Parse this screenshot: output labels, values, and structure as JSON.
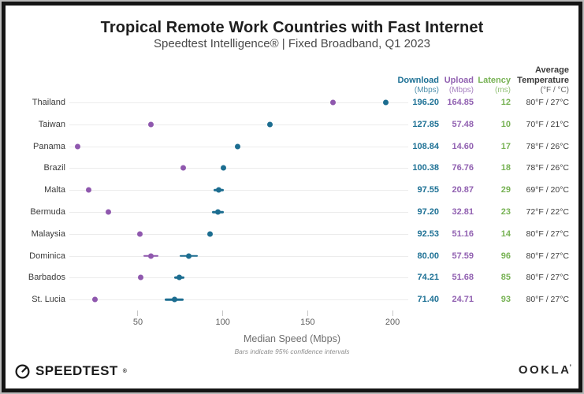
{
  "chart_data": {
    "type": "scatter",
    "title": "Tropical Remote Work Countries with Fast Internet",
    "subtitle": "Speedtest Intelligence® | Fixed Broadband, Q1 2023",
    "xlabel": "Median Speed (Mbps)",
    "note": "Bars indicate 95% confidence intervals",
    "xticks": [
      50,
      100,
      150,
      200
    ],
    "xlim": [
      0,
      210
    ],
    "grid": "horizontal-row-lines",
    "legend_position": "none",
    "columns": {
      "average": "Average",
      "download": {
        "label": "Download",
        "unit": "(Mbps)"
      },
      "upload": {
        "label": "Upload",
        "unit": "(Mbps)"
      },
      "latency": {
        "label": "Latency",
        "unit": "(ms)"
      },
      "temperature": {
        "label": "Temperature",
        "unit": "(°F / °C)"
      }
    },
    "series": [
      {
        "name": "Download (Mbps)",
        "color": "#1c6d90"
      },
      {
        "name": "Upload (Mbps)",
        "color": "#8f58ae"
      }
    ],
    "countries": [
      {
        "name": "Thailand",
        "download": 196.2,
        "upload": 164.85,
        "latency": 12,
        "temperature": "80°F / 27°C",
        "download_ci": 0,
        "upload_ci": 0
      },
      {
        "name": "Taiwan",
        "download": 127.85,
        "upload": 57.48,
        "latency": 10,
        "temperature": "70°F / 21°C",
        "download_ci": 0,
        "upload_ci": 0
      },
      {
        "name": "Panama",
        "download": 108.84,
        "upload": 14.6,
        "latency": 17,
        "temperature": "78°F / 26°C",
        "download_ci": 0,
        "upload_ci": 0
      },
      {
        "name": "Brazil",
        "download": 100.38,
        "upload": 76.76,
        "latency": 18,
        "temperature": "78°F / 26°C",
        "download_ci": 0,
        "upload_ci": 0
      },
      {
        "name": "Malta",
        "download": 97.55,
        "upload": 20.87,
        "latency": 29,
        "temperature": "69°F / 20°C",
        "download_ci": 3,
        "upload_ci": 0
      },
      {
        "name": "Bermuda",
        "download": 97.2,
        "upload": 32.81,
        "latency": 23,
        "temperature": "72°F / 22°C",
        "download_ci": 3.5,
        "upload_ci": 0
      },
      {
        "name": "Malaysia",
        "download": 92.53,
        "upload": 51.16,
        "latency": 14,
        "temperature": "80°F / 27°C",
        "download_ci": 0,
        "upload_ci": 0
      },
      {
        "name": "Dominica",
        "download": 80.0,
        "upload": 57.59,
        "latency": 96,
        "temperature": "80°F / 27°C",
        "download_ci": 5.5,
        "upload_ci": 4.5
      },
      {
        "name": "Barbados",
        "download": 74.21,
        "upload": 51.68,
        "latency": 85,
        "temperature": "80°F / 27°C",
        "download_ci": 3,
        "upload_ci": 0
      },
      {
        "name": "St. Lucia",
        "download": 71.4,
        "upload": 24.71,
        "latency": 93,
        "temperature": "80°F / 27°C",
        "download_ci": 5.5,
        "upload_ci": 0
      }
    ],
    "colors": {
      "download_dot": "#1c6d90",
      "download_text": "#1e7195",
      "upload_dot": "#8f58ae",
      "upload_text": "#9161b1",
      "latency_text": "#77b254"
    }
  },
  "footer": {
    "speedtest": "SPEEDTEST",
    "speedtest_mark": "®",
    "ookla": "OOKLA",
    "ookla_mark": "’"
  }
}
